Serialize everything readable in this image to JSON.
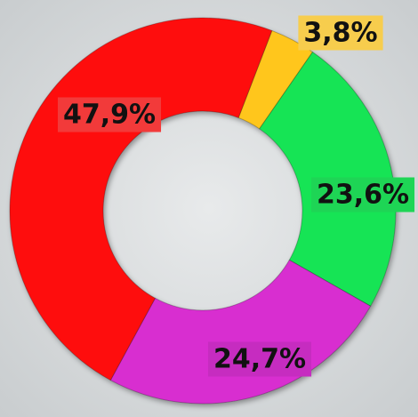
{
  "chart_data": {
    "type": "donut",
    "categories": [
      null,
      null,
      null,
      null
    ],
    "values": [
      3.8,
      23.6,
      24.7,
      47.9
    ],
    "value_labels": [
      "3,8%",
      "23,6%",
      "24,7%",
      "47,9%"
    ],
    "colors": [
      "#ffc61a",
      "#17e455",
      "#d82fd0",
      "#fe1010"
    ]
  }
}
